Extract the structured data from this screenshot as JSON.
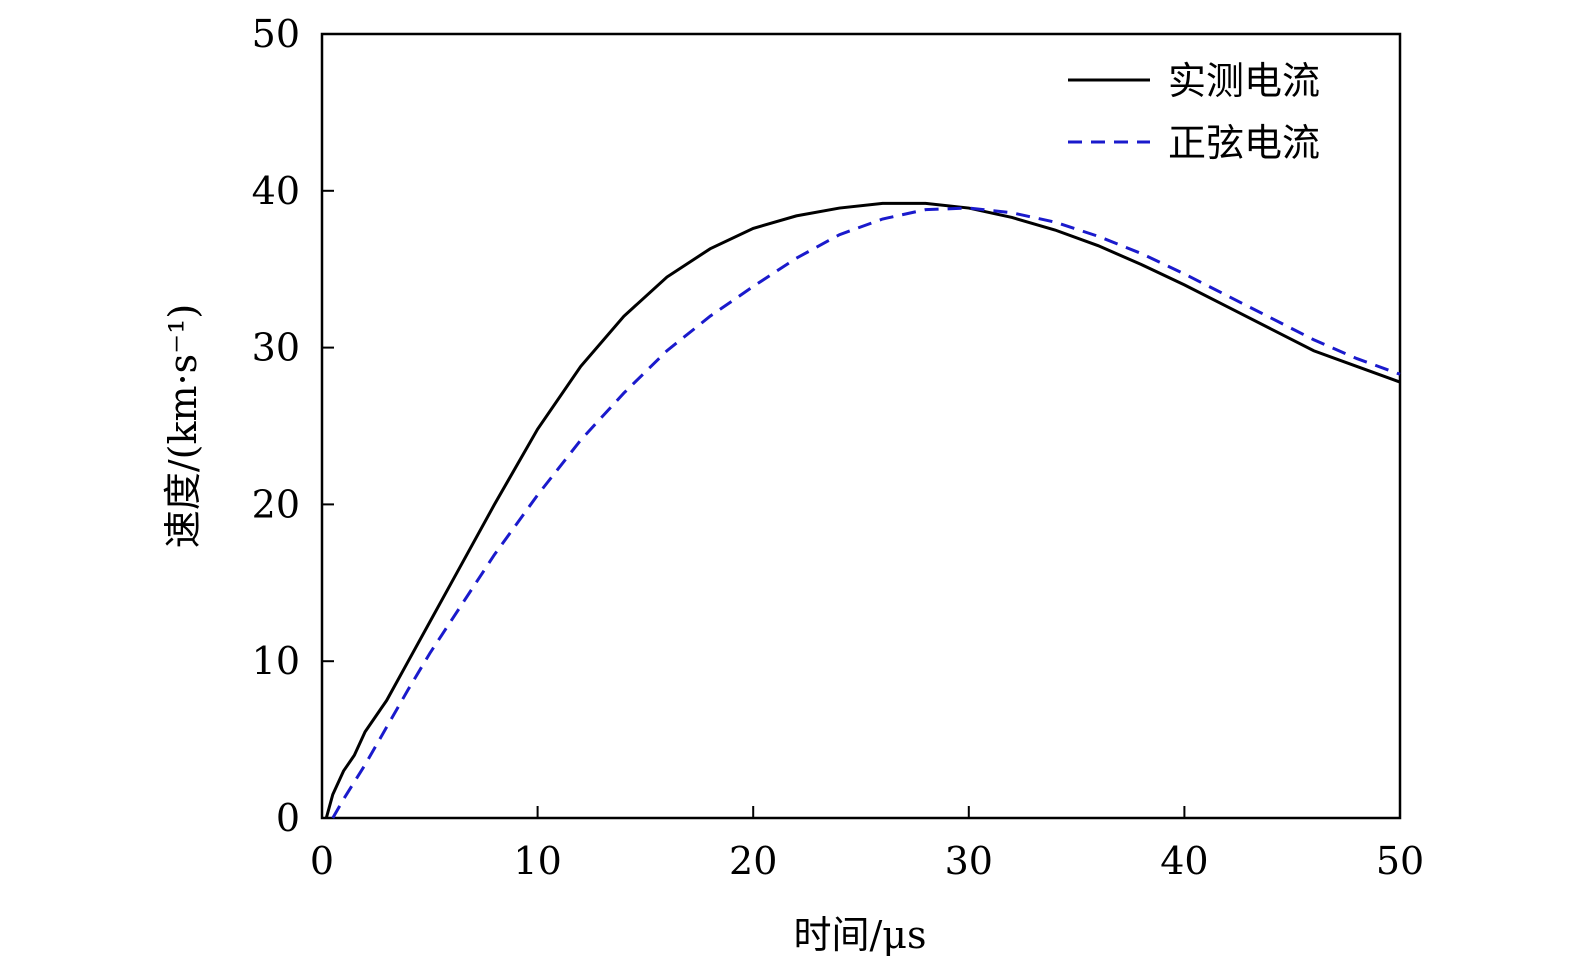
{
  "chart_data": {
    "type": "line",
    "x_label": "时间/μs",
    "y_label": "速度/(km·s⁻¹)",
    "xlim": [
      0,
      50
    ],
    "xticks": [
      0,
      10,
      20,
      30,
      40,
      50
    ],
    "ylim": [
      0,
      50
    ],
    "yticks": [
      0,
      10,
      20,
      30,
      40,
      50
    ],
    "legend": "upper right",
    "series": [
      {
        "name": "实测电流",
        "color": "#000000",
        "dash": "solid",
        "x": [
          0.2,
          0.5,
          1,
          1.5,
          2,
          3,
          4,
          5,
          6,
          8,
          10,
          12,
          14,
          16,
          18,
          20,
          22,
          24,
          26,
          28,
          30,
          32,
          34,
          36,
          38,
          40,
          42,
          44,
          46,
          48,
          50
        ],
        "values": [
          0,
          1.5,
          3,
          4,
          5.5,
          7.5,
          10,
          12.5,
          15,
          20,
          24.8,
          28.8,
          32,
          34.5,
          36.3,
          37.6,
          38.4,
          38.9,
          39.2,
          39.2,
          38.9,
          38.3,
          37.5,
          36.5,
          35.3,
          34,
          32.6,
          31.2,
          29.8,
          28.8,
          27.8
        ]
      },
      {
        "name": "正弦电流",
        "color": "#1a1acc",
        "dash": "dashed",
        "x": [
          0.5,
          1,
          2,
          3,
          4,
          5,
          6,
          8,
          10,
          12,
          14,
          16,
          18,
          20,
          22,
          24,
          26,
          28,
          30,
          32,
          34,
          36,
          38,
          40,
          42,
          44,
          46,
          48,
          50
        ],
        "values": [
          0,
          1.2,
          3.4,
          5.8,
          8.2,
          10.5,
          12.6,
          16.8,
          20.6,
          24.1,
          27.1,
          29.8,
          32,
          33.9,
          35.7,
          37.2,
          38.2,
          38.8,
          38.9,
          38.6,
          38,
          37.1,
          36,
          34.7,
          33.3,
          31.9,
          30.5,
          29.3,
          28.3
        ]
      }
    ]
  }
}
